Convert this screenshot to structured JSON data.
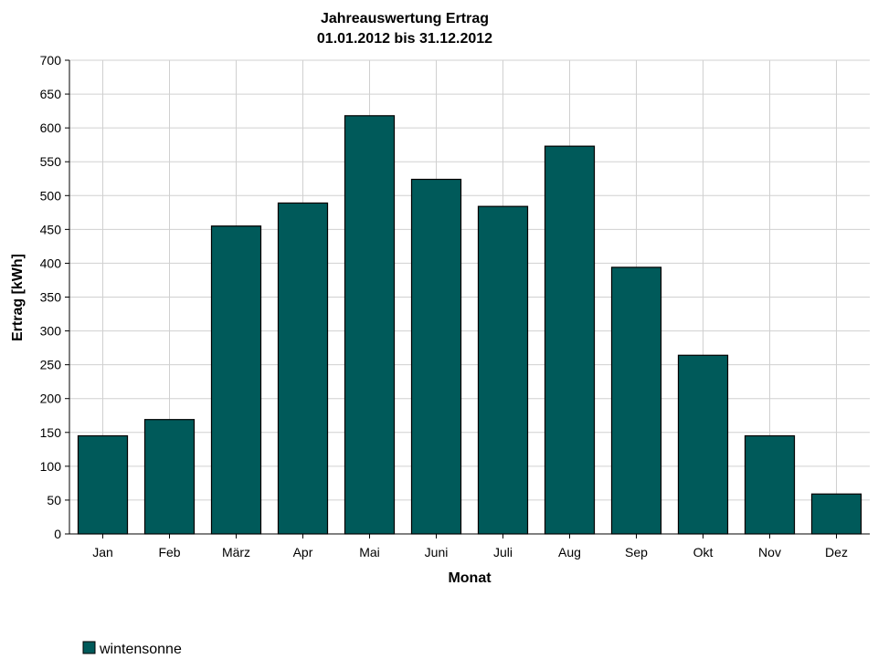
{
  "chart_data": {
    "type": "bar",
    "title": "Jahreauswertung Ertrag",
    "subtitle": "01.01.2012 bis 31.12.2012",
    "xlabel": "Monat",
    "ylabel": "Ertrag [kWh]",
    "ylim": [
      0,
      700
    ],
    "ytick_step": 50,
    "grid": true,
    "legend_position": "bottom-left",
    "categories": [
      "Jan",
      "Feb",
      "März",
      "Apr",
      "Mai",
      "Juni",
      "Juli",
      "Aug",
      "Sep",
      "Okt",
      "Nov",
      "Dez"
    ],
    "series": [
      {
        "name": "wintensonne",
        "color": "#005a5a",
        "values": [
          145,
          169,
          455,
          489,
          618,
          524,
          484,
          573,
          394,
          264,
          145,
          59
        ]
      }
    ]
  }
}
